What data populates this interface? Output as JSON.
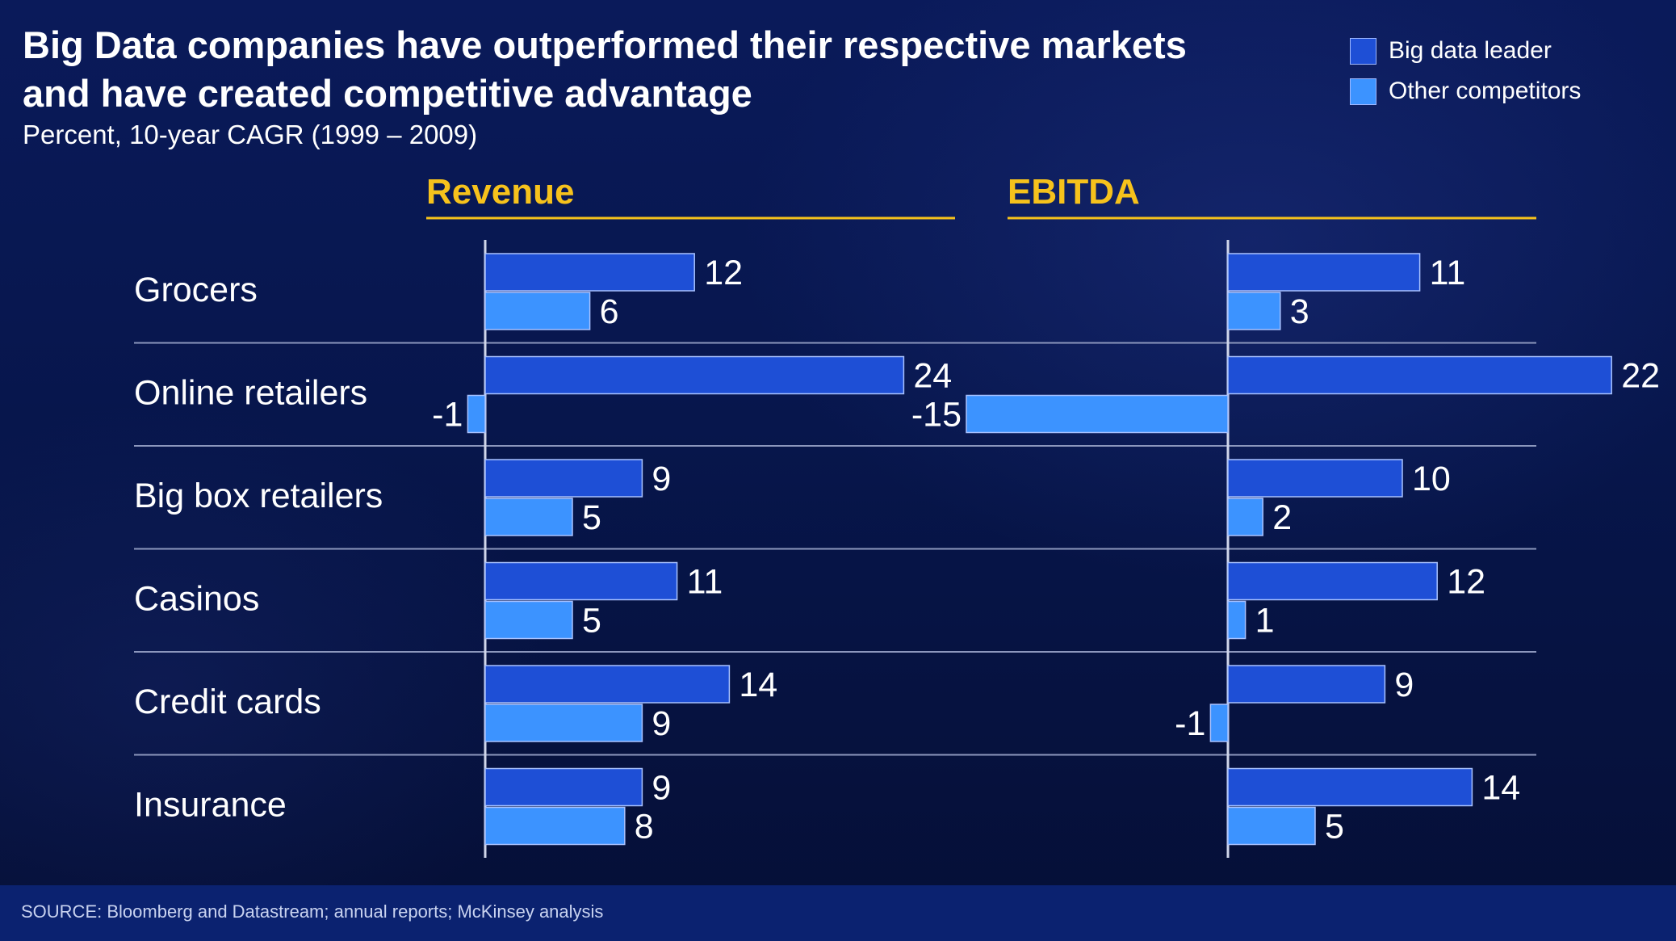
{
  "title_line1": "Big Data companies have outperformed their respective markets",
  "title_line2": "and have created competitive advantage",
  "subtitle": "Percent, 10-year CAGR (1999 – 2009)",
  "legend": [
    {
      "label": "Big data leader",
      "color": "#1e4fd6"
    },
    {
      "label": "Other competitors",
      "color": "#3c93ff"
    }
  ],
  "source": "SOURCE: Bloomberg and Datastream; annual reports; McKinsey analysis",
  "colors": {
    "leader": "#1e4fd6",
    "competitors": "#3c93ff",
    "panel_title": "#f6c21c",
    "text": "#ffffff"
  },
  "chart_data": {
    "type": "bar",
    "orientation": "horizontal",
    "categories": [
      "Grocers",
      "Online retailers",
      "Big box retailers",
      "Casinos",
      "Credit cards",
      "Insurance"
    ],
    "panels": [
      {
        "title": "Revenue",
        "series": [
          {
            "name": "Big data leader",
            "values": [
              12,
              24,
              9,
              11,
              14,
              9
            ]
          },
          {
            "name": "Other competitors",
            "values": [
              6,
              -1,
              5,
              5,
              9,
              8
            ]
          }
        ]
      },
      {
        "title": "EBITDA",
        "series": [
          {
            "name": "Big data leader",
            "values": [
              11,
              22,
              10,
              12,
              9,
              14
            ]
          },
          {
            "name": "Other competitors",
            "values": [
              3,
              -15,
              2,
              1,
              -1,
              5
            ]
          }
        ]
      }
    ]
  }
}
